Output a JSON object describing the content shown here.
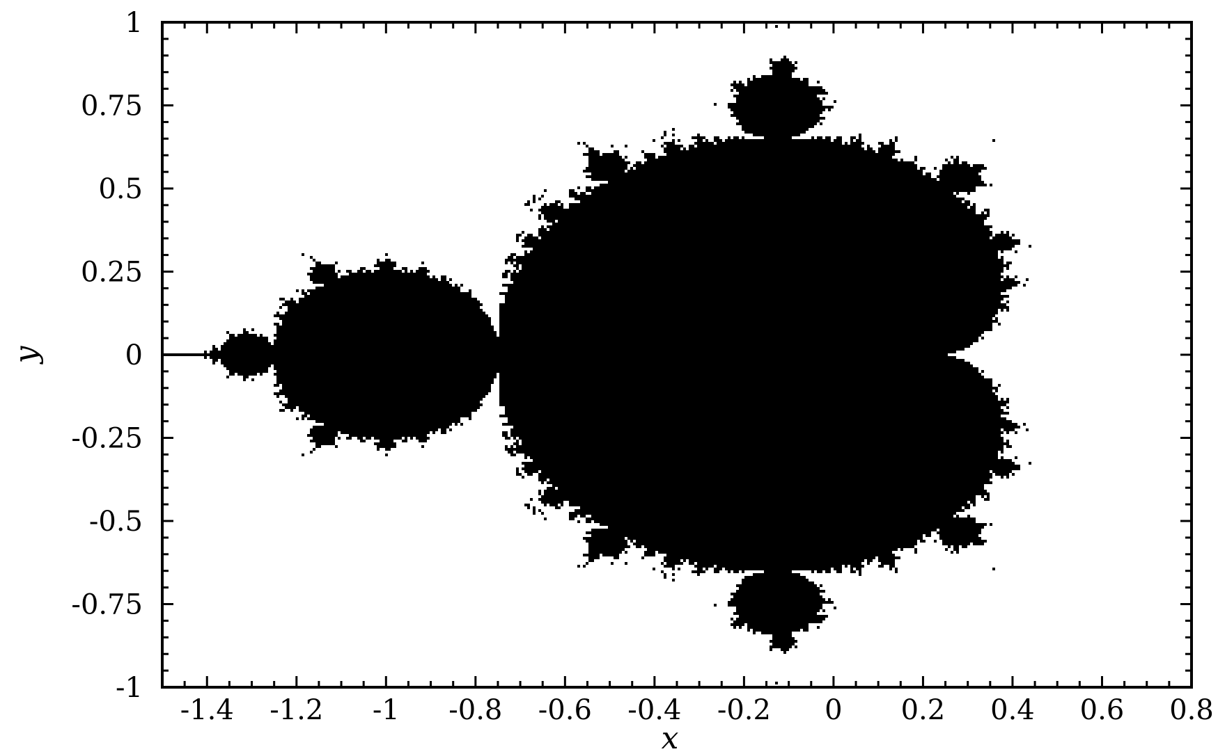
{
  "chart_data": {
    "type": "heatmap",
    "title": "",
    "xlabel": "x",
    "ylabel": "y",
    "xlim": [
      -1.5,
      0.8
    ],
    "ylim": [
      -1,
      1
    ],
    "x_ticks": [
      -1.4,
      -1.2,
      -1,
      -0.8,
      -0.6,
      -0.4,
      -0.2,
      0,
      0.2,
      0.4,
      0.6,
      0.8
    ],
    "x_tick_labels": [
      "-1.4",
      "-1.2",
      "-1",
      "-0.8",
      "-0.6",
      "-0.4",
      "-0.2",
      "0",
      "0.2",
      "0.4",
      "0.6",
      "0.8"
    ],
    "y_ticks": [
      1,
      0.75,
      0.5,
      0.25,
      0,
      -0.25,
      -0.5,
      -0.75,
      -1
    ],
    "y_tick_labels": [
      "1",
      "0.75",
      "0.5",
      "0.25",
      "0",
      "-0.25",
      "-0.5",
      "-0.75",
      "-1"
    ],
    "grid": false,
    "set": "Mandelbrot set",
    "max_iterations": 60,
    "colors": {
      "inside": "#000000",
      "outside": "#ffffff"
    }
  }
}
